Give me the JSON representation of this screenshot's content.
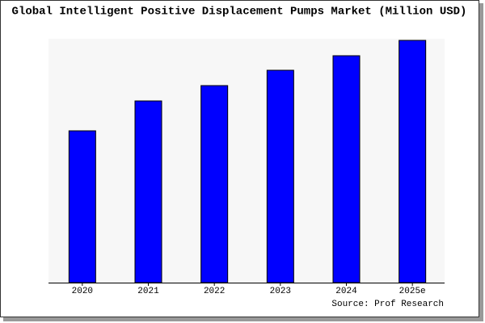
{
  "chart_data": {
    "type": "bar",
    "title": "Global Intelligent Positive Displacement Pumps Market (Million USD)",
    "source": "Source: Prof Research",
    "categories": [
      "2020",
      "2021",
      "2022",
      "2023",
      "2024",
      "2025e"
    ],
    "values": [
      188,
      225,
      244,
      263,
      281,
      300
    ],
    "color": "#0000ff",
    "ylim": [
      0,
      300
    ]
  }
}
